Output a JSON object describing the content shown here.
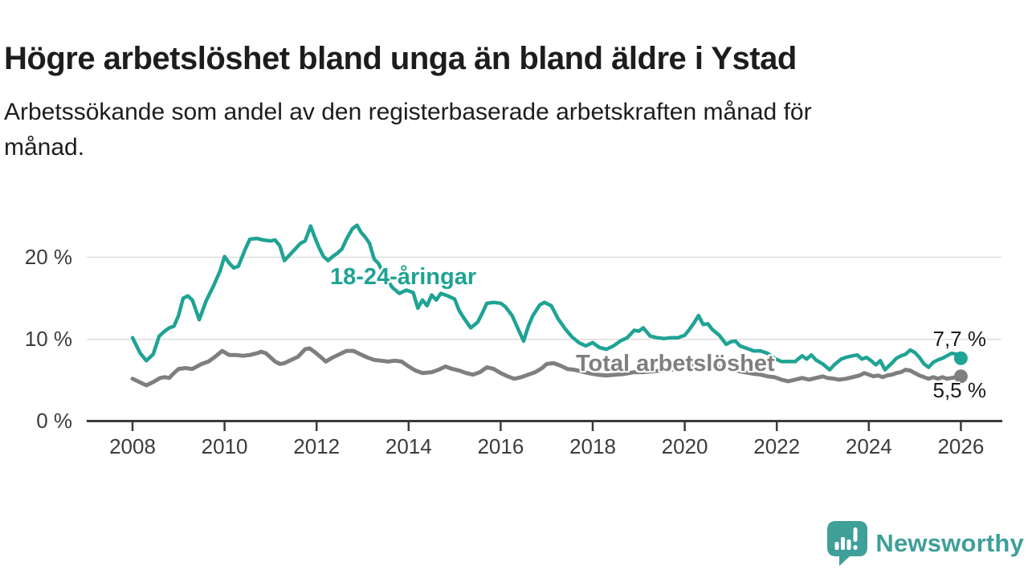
{
  "title": "Högre arbetslöshet bland unga än bland äldre i Ystad",
  "subtitle_line1": "Arbetssökande som andel av den registerbaserade arbetskraften månad för",
  "subtitle_line2": "månad.",
  "branding": {
    "name": "Newsworthy",
    "logo_icon": "chart-speech-bubble-icon",
    "color": "#3f9f99"
  },
  "colors": {
    "young_series": "#1fa394",
    "total_series": "#7f7f7f",
    "grid": "#dcdcdc",
    "axis": "#3b3b3b",
    "text": "#1d1d1b",
    "tick_text": "#3c3c3c"
  },
  "chart_data": {
    "type": "line",
    "title": "Högre arbetslöshet bland unga än bland äldre i Ystad",
    "subtitle": "Arbetssökande som andel av den registerbaserade arbetskraften månad för månad.",
    "unit": "%",
    "grid": "horizontal",
    "legend_position": "inline-labels",
    "xlim": [
      2007.9,
      2026.4
    ],
    "ylim": [
      0,
      25.5
    ],
    "y_axis": {
      "ticks": [
        {
          "value": 0,
          "label": "0 %"
        },
        {
          "value": 10,
          "label": "10 %"
        },
        {
          "value": 20,
          "label": "20 %"
        }
      ]
    },
    "x_axis": {
      "ticks": [
        {
          "year": 2008,
          "label": "2008"
        },
        {
          "year": 2010,
          "label": "2010"
        },
        {
          "year": 2012,
          "label": "2012"
        },
        {
          "year": 2014,
          "label": "2014"
        },
        {
          "year": 2016,
          "label": "2016"
        },
        {
          "year": 2018,
          "label": "2018"
        },
        {
          "year": 2020,
          "label": "2020"
        },
        {
          "year": 2022,
          "label": "2022"
        },
        {
          "year": 2024,
          "label": "2024"
        },
        {
          "year": 2026,
          "label": "2026"
        }
      ]
    },
    "series": [
      {
        "name": "18-24-åringar",
        "color": "#1fa394",
        "line_width": 4.5,
        "end_value": 7.7,
        "end_label": "7,7 %",
        "points": [
          [
            2008.0,
            10.2
          ],
          [
            2008.17,
            8.3
          ],
          [
            2008.3,
            7.4
          ],
          [
            2008.45,
            8.2
          ],
          [
            2008.58,
            10.4
          ],
          [
            2008.7,
            11.0
          ],
          [
            2008.8,
            11.4
          ],
          [
            2008.9,
            11.6
          ],
          [
            2009.0,
            12.9
          ],
          [
            2009.1,
            15.0
          ],
          [
            2009.2,
            15.3
          ],
          [
            2009.3,
            14.8
          ],
          [
            2009.45,
            12.4
          ],
          [
            2009.6,
            14.7
          ],
          [
            2009.75,
            16.4
          ],
          [
            2009.9,
            18.3
          ],
          [
            2010.0,
            20.1
          ],
          [
            2010.1,
            19.3
          ],
          [
            2010.2,
            18.7
          ],
          [
            2010.3,
            18.9
          ],
          [
            2010.45,
            21.0
          ],
          [
            2010.55,
            22.2
          ],
          [
            2010.7,
            22.3
          ],
          [
            2010.85,
            22.1
          ],
          [
            2011.0,
            22.0
          ],
          [
            2011.1,
            22.1
          ],
          [
            2011.2,
            21.4
          ],
          [
            2011.3,
            19.6
          ],
          [
            2011.4,
            20.2
          ],
          [
            2011.55,
            21.1
          ],
          [
            2011.65,
            21.7
          ],
          [
            2011.75,
            22.0
          ],
          [
            2011.87,
            23.8
          ],
          [
            2011.95,
            22.6
          ],
          [
            2012.05,
            21.2
          ],
          [
            2012.15,
            20.1
          ],
          [
            2012.25,
            19.6
          ],
          [
            2012.35,
            20.1
          ],
          [
            2012.45,
            20.5
          ],
          [
            2012.55,
            21.0
          ],
          [
            2012.65,
            22.2
          ],
          [
            2012.78,
            23.5
          ],
          [
            2012.88,
            23.9
          ],
          [
            2012.97,
            23.0
          ],
          [
            2013.05,
            22.5
          ],
          [
            2013.15,
            21.7
          ],
          [
            2013.25,
            19.8
          ],
          [
            2013.35,
            19.2
          ],
          [
            2013.5,
            17.5
          ],
          [
            2013.65,
            16.3
          ],
          [
            2013.8,
            15.6
          ],
          [
            2013.95,
            16.0
          ],
          [
            2014.1,
            15.7
          ],
          [
            2014.2,
            13.8
          ],
          [
            2014.3,
            14.8
          ],
          [
            2014.4,
            14.1
          ],
          [
            2014.5,
            15.4
          ],
          [
            2014.6,
            14.8
          ],
          [
            2014.7,
            15.6
          ],
          [
            2014.85,
            15.3
          ],
          [
            2015.0,
            14.9
          ],
          [
            2015.1,
            13.5
          ],
          [
            2015.2,
            12.6
          ],
          [
            2015.35,
            11.4
          ],
          [
            2015.5,
            12.1
          ],
          [
            2015.6,
            13.2
          ],
          [
            2015.7,
            14.4
          ],
          [
            2015.85,
            14.5
          ],
          [
            2016.0,
            14.4
          ],
          [
            2016.1,
            14.0
          ],
          [
            2016.25,
            12.9
          ],
          [
            2016.4,
            11.0
          ],
          [
            2016.5,
            9.8
          ],
          [
            2016.6,
            11.6
          ],
          [
            2016.7,
            12.9
          ],
          [
            2016.85,
            14.2
          ],
          [
            2016.95,
            14.5
          ],
          [
            2017.1,
            14.1
          ],
          [
            2017.25,
            12.5
          ],
          [
            2017.4,
            11.3
          ],
          [
            2017.55,
            10.3
          ],
          [
            2017.7,
            9.6
          ],
          [
            2017.85,
            9.2
          ],
          [
            2018.0,
            9.6
          ],
          [
            2018.15,
            9.0
          ],
          [
            2018.3,
            8.8
          ],
          [
            2018.45,
            9.2
          ],
          [
            2018.6,
            9.8
          ],
          [
            2018.75,
            10.2
          ],
          [
            2018.9,
            11.1
          ],
          [
            2019.0,
            11.0
          ],
          [
            2019.1,
            11.4
          ],
          [
            2019.25,
            10.4
          ],
          [
            2019.4,
            10.2
          ],
          [
            2019.55,
            10.1
          ],
          [
            2019.7,
            10.2
          ],
          [
            2019.85,
            10.2
          ],
          [
            2020.0,
            10.5
          ],
          [
            2020.1,
            11.2
          ],
          [
            2020.2,
            12.0
          ],
          [
            2020.3,
            12.9
          ],
          [
            2020.4,
            11.8
          ],
          [
            2020.5,
            11.9
          ],
          [
            2020.6,
            11.2
          ],
          [
            2020.75,
            10.5
          ],
          [
            2020.9,
            9.4
          ],
          [
            2021.0,
            9.7
          ],
          [
            2021.1,
            9.8
          ],
          [
            2021.2,
            9.2
          ],
          [
            2021.35,
            8.9
          ],
          [
            2021.5,
            8.6
          ],
          [
            2021.65,
            8.6
          ],
          [
            2021.8,
            8.3
          ],
          [
            2021.95,
            7.7
          ],
          [
            2022.1,
            7.3
          ],
          [
            2022.25,
            7.3
          ],
          [
            2022.4,
            7.3
          ],
          [
            2022.55,
            8.0
          ],
          [
            2022.65,
            7.6
          ],
          [
            2022.75,
            8.1
          ],
          [
            2022.85,
            7.5
          ],
          [
            2023.0,
            7.0
          ],
          [
            2023.15,
            6.3
          ],
          [
            2023.25,
            6.9
          ],
          [
            2023.4,
            7.6
          ],
          [
            2023.5,
            7.8
          ],
          [
            2023.65,
            8.0
          ],
          [
            2023.75,
            8.1
          ],
          [
            2023.85,
            7.6
          ],
          [
            2023.95,
            7.8
          ],
          [
            2024.05,
            7.4
          ],
          [
            2024.15,
            6.9
          ],
          [
            2024.25,
            7.4
          ],
          [
            2024.35,
            6.3
          ],
          [
            2024.5,
            7.1
          ],
          [
            2024.6,
            7.7
          ],
          [
            2024.7,
            8.0
          ],
          [
            2024.8,
            8.2
          ],
          [
            2024.9,
            8.7
          ],
          [
            2025.0,
            8.4
          ],
          [
            2025.1,
            7.8
          ],
          [
            2025.2,
            7.0
          ],
          [
            2025.3,
            6.6
          ],
          [
            2025.4,
            7.2
          ],
          [
            2025.5,
            7.5
          ],
          [
            2025.6,
            7.7
          ],
          [
            2025.7,
            8.0
          ],
          [
            2025.8,
            8.3
          ],
          [
            2025.9,
            8.2
          ],
          [
            2026.0,
            7.7
          ]
        ]
      },
      {
        "name": "Total arbetslöshet",
        "color": "#7f7f7f",
        "line_width": 5,
        "end_value": 5.5,
        "end_label": "5,5 %",
        "points": [
          [
            2008.0,
            5.2
          ],
          [
            2008.15,
            4.8
          ],
          [
            2008.3,
            4.4
          ],
          [
            2008.45,
            4.8
          ],
          [
            2008.6,
            5.3
          ],
          [
            2008.7,
            5.4
          ],
          [
            2008.8,
            5.3
          ],
          [
            2008.9,
            5.9
          ],
          [
            2009.0,
            6.4
          ],
          [
            2009.15,
            6.5
          ],
          [
            2009.3,
            6.4
          ],
          [
            2009.5,
            7.0
          ],
          [
            2009.65,
            7.3
          ],
          [
            2009.8,
            7.9
          ],
          [
            2009.95,
            8.6
          ],
          [
            2010.1,
            8.1
          ],
          [
            2010.25,
            8.1
          ],
          [
            2010.4,
            8.0
          ],
          [
            2010.55,
            8.1
          ],
          [
            2010.7,
            8.3
          ],
          [
            2010.8,
            8.5
          ],
          [
            2010.9,
            8.3
          ],
          [
            2011.0,
            7.8
          ],
          [
            2011.1,
            7.3
          ],
          [
            2011.2,
            7.0
          ],
          [
            2011.3,
            7.1
          ],
          [
            2011.45,
            7.5
          ],
          [
            2011.6,
            7.9
          ],
          [
            2011.75,
            8.8
          ],
          [
            2011.85,
            8.9
          ],
          [
            2011.95,
            8.5
          ],
          [
            2012.1,
            7.8
          ],
          [
            2012.2,
            7.3
          ],
          [
            2012.35,
            7.8
          ],
          [
            2012.5,
            8.2
          ],
          [
            2012.65,
            8.6
          ],
          [
            2012.8,
            8.6
          ],
          [
            2012.95,
            8.2
          ],
          [
            2013.1,
            7.8
          ],
          [
            2013.25,
            7.5
          ],
          [
            2013.4,
            7.4
          ],
          [
            2013.55,
            7.3
          ],
          [
            2013.7,
            7.4
          ],
          [
            2013.85,
            7.3
          ],
          [
            2014.0,
            6.7
          ],
          [
            2014.15,
            6.2
          ],
          [
            2014.3,
            5.9
          ],
          [
            2014.5,
            6.0
          ],
          [
            2014.65,
            6.3
          ],
          [
            2014.8,
            6.7
          ],
          [
            2014.95,
            6.4
          ],
          [
            2015.1,
            6.2
          ],
          [
            2015.25,
            5.9
          ],
          [
            2015.4,
            5.7
          ],
          [
            2015.55,
            6.0
          ],
          [
            2015.7,
            6.6
          ],
          [
            2015.85,
            6.4
          ],
          [
            2016.0,
            5.9
          ],
          [
            2016.15,
            5.5
          ],
          [
            2016.3,
            5.2
          ],
          [
            2016.45,
            5.4
          ],
          [
            2016.6,
            5.7
          ],
          [
            2016.75,
            6.0
          ],
          [
            2016.9,
            6.5
          ],
          [
            2017.0,
            7.0
          ],
          [
            2017.15,
            7.1
          ],
          [
            2017.3,
            6.8
          ],
          [
            2017.45,
            6.4
          ],
          [
            2017.6,
            6.3
          ],
          [
            2017.75,
            6.1
          ],
          [
            2017.9,
            5.9
          ],
          [
            2018.1,
            5.7
          ],
          [
            2018.3,
            5.6
          ],
          [
            2018.5,
            5.7
          ],
          [
            2018.7,
            5.8
          ],
          [
            2018.9,
            6.0
          ],
          [
            2019.1,
            6.0
          ],
          [
            2019.3,
            6.1
          ],
          [
            2019.5,
            6.2
          ],
          [
            2019.7,
            6.3
          ],
          [
            2019.9,
            6.4
          ],
          [
            2020.1,
            6.6
          ],
          [
            2020.3,
            7.0
          ],
          [
            2020.5,
            6.9
          ],
          [
            2020.7,
            6.7
          ],
          [
            2020.9,
            6.4
          ],
          [
            2021.1,
            6.2
          ],
          [
            2021.3,
            6.0
          ],
          [
            2021.5,
            5.8
          ],
          [
            2021.65,
            5.7
          ],
          [
            2021.8,
            5.5
          ],
          [
            2021.95,
            5.4
          ],
          [
            2022.1,
            5.1
          ],
          [
            2022.25,
            4.9
          ],
          [
            2022.4,
            5.1
          ],
          [
            2022.55,
            5.3
          ],
          [
            2022.7,
            5.1
          ],
          [
            2022.85,
            5.3
          ],
          [
            2023.0,
            5.5
          ],
          [
            2023.1,
            5.3
          ],
          [
            2023.25,
            5.2
          ],
          [
            2023.35,
            5.1
          ],
          [
            2023.5,
            5.2
          ],
          [
            2023.65,
            5.4
          ],
          [
            2023.8,
            5.6
          ],
          [
            2023.9,
            5.9
          ],
          [
            2024.0,
            5.7
          ],
          [
            2024.1,
            5.5
          ],
          [
            2024.2,
            5.6
          ],
          [
            2024.3,
            5.4
          ],
          [
            2024.4,
            5.6
          ],
          [
            2024.5,
            5.7
          ],
          [
            2024.6,
            5.9
          ],
          [
            2024.7,
            6.0
          ],
          [
            2024.8,
            6.3
          ],
          [
            2024.9,
            6.2
          ],
          [
            2025.0,
            5.9
          ],
          [
            2025.1,
            5.6
          ],
          [
            2025.2,
            5.4
          ],
          [
            2025.3,
            5.2
          ],
          [
            2025.4,
            5.4
          ],
          [
            2025.5,
            5.2
          ],
          [
            2025.6,
            5.4
          ],
          [
            2025.7,
            5.2
          ],
          [
            2025.8,
            5.3
          ],
          [
            2025.9,
            5.4
          ],
          [
            2026.0,
            5.5
          ]
        ]
      }
    ]
  }
}
